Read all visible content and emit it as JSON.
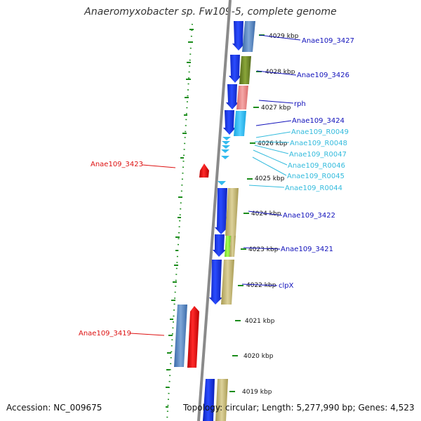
{
  "title": "Anaeromyxobacter sp. Fw109-5, complete genome",
  "footer": {
    "accession": "Accession: NC_009675",
    "topology": "Topology: circular; Length: 5,277,990 bp; Genes: 4,523"
  },
  "scale_labels": [
    "4029 kbp",
    "4028 kbp",
    "4027 kbp",
    "4026 kbp",
    "4025 kbp",
    "4024 kbp",
    "4023 kbp",
    "4022 kbp",
    "4021 kbp",
    "4020 kbp",
    "4019 kbp"
  ],
  "gene_labels_right": [
    {
      "text": "Anae109_3427",
      "color": "#1111bb"
    },
    {
      "text": "Anae109_3426",
      "color": "#1111bb"
    },
    {
      "text": "rph",
      "color": "#1111bb"
    },
    {
      "text": "Anae109_3424",
      "color": "#1111bb"
    },
    {
      "text": "Anae109_R0049",
      "color": "#33bbdd"
    },
    {
      "text": "Anae109_R0048",
      "color": "#33bbdd"
    },
    {
      "text": "Anae109_R0047",
      "color": "#33bbdd"
    },
    {
      "text": "Anae109_R0046",
      "color": "#33bbdd"
    },
    {
      "text": "Anae109_R0045",
      "color": "#33bbdd"
    },
    {
      "text": "Anae109_R0044",
      "color": "#33bbdd"
    },
    {
      "text": "Anae109_3422",
      "color": "#1111bb"
    },
    {
      "text": "Anae109_3421",
      "color": "#1111bb"
    },
    {
      "text": "clpX",
      "color": "#1111bb"
    }
  ],
  "gene_labels_left": [
    {
      "text": "Anae109_3423",
      "color": "#dd1111"
    },
    {
      "text": "Anae109_3419",
      "color": "#dd1111"
    }
  ],
  "colors": {
    "forward_cds": "#1133ee",
    "reverse_cds": "#ee1111",
    "rna": "#33bbee",
    "backbone": "#888888",
    "gc_skew": "#1a8c1a"
  }
}
